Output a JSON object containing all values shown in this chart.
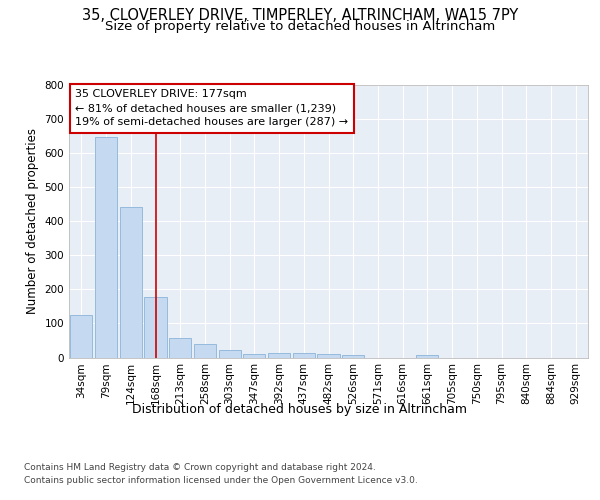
{
  "title_line1": "35, CLOVERLEY DRIVE, TIMPERLEY, ALTRINCHAM, WA15 7PY",
  "title_line2": "Size of property relative to detached houses in Altrincham",
  "xlabel": "Distribution of detached houses by size in Altrincham",
  "ylabel": "Number of detached properties",
  "categories": [
    "34sqm",
    "79sqm",
    "124sqm",
    "168sqm",
    "213sqm",
    "258sqm",
    "303sqm",
    "347sqm",
    "392sqm",
    "437sqm",
    "482sqm",
    "526sqm",
    "571sqm",
    "616sqm",
    "661sqm",
    "705sqm",
    "750sqm",
    "795sqm",
    "840sqm",
    "884sqm",
    "929sqm"
  ],
  "values": [
    124,
    648,
    442,
    179,
    57,
    40,
    23,
    11,
    14,
    12,
    9,
    6,
    0,
    0,
    8,
    0,
    0,
    0,
    0,
    0,
    0
  ],
  "bar_color": "#c5d9f0",
  "bar_edge_color": "#8ab4d9",
  "plot_bg_color": "#e8eef6",
  "fig_bg_color": "#ffffff",
  "grid_color": "#ffffff",
  "annotation_line1": "35 CLOVERLEY DRIVE: 177sqm",
  "annotation_line2": "← 81% of detached houses are smaller (1,239)",
  "annotation_line3": "19% of semi-detached houses are larger (287) →",
  "annotation_box_facecolor": "#ffffff",
  "annotation_box_edgecolor": "#cc0000",
  "vline_color": "#cc0000",
  "vline_pos": 3,
  "ylim": [
    0,
    800
  ],
  "yticks": [
    0,
    100,
    200,
    300,
    400,
    500,
    600,
    700,
    800
  ],
  "title_fontsize": 10.5,
  "subtitle_fontsize": 9.5,
  "ylabel_fontsize": 8.5,
  "xlabel_fontsize": 9,
  "tick_fontsize": 7.5,
  "annotation_fontsize": 8,
  "footnote_fontsize": 6.5,
  "footnote": "Contains HM Land Registry data © Crown copyright and database right 2024.\nContains public sector information licensed under the Open Government Licence v3.0."
}
